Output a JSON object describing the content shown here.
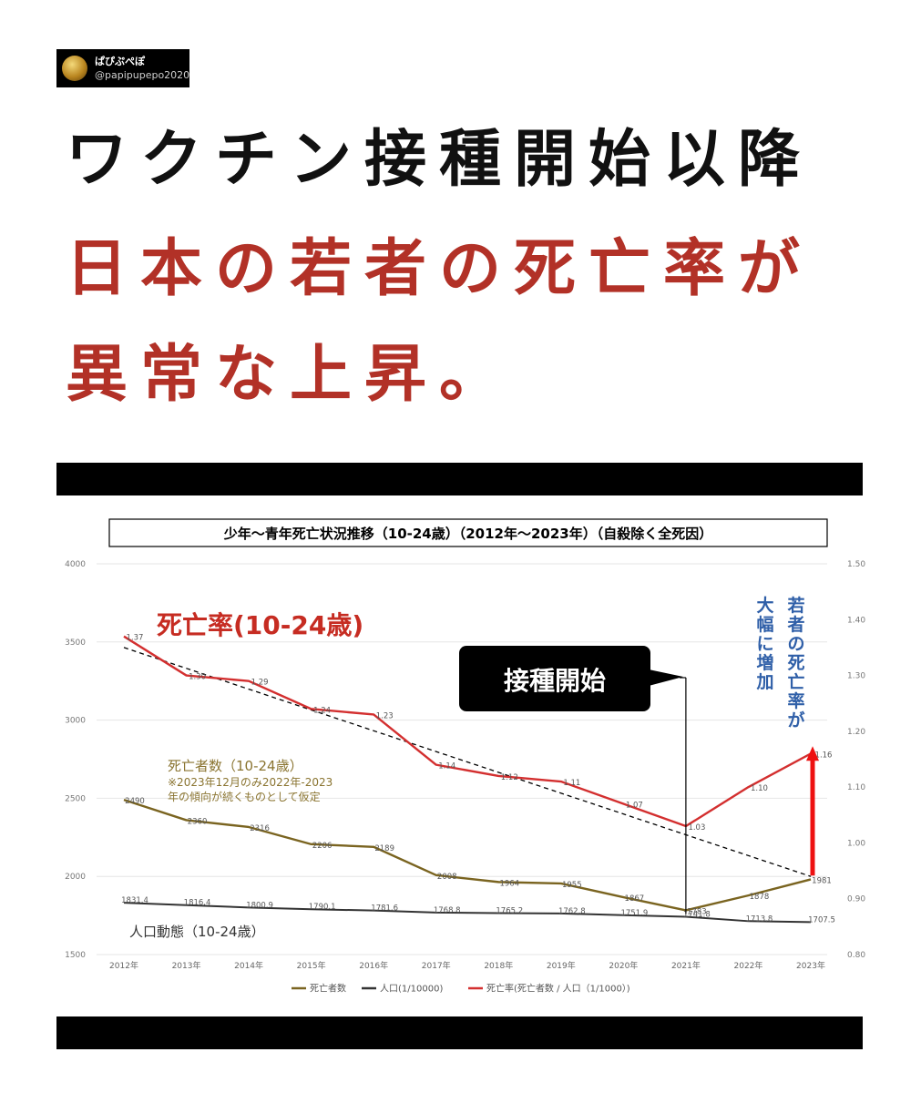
{
  "account": {
    "name": "ぱぴぷぺぽ",
    "handle": "@papipupepo2020"
  },
  "headline": {
    "line1": "ワクチン接種開始以降",
    "line2": "日本の若者の死亡率が",
    "line3": "異常な上昇。"
  },
  "colors": {
    "headline_red": "#b23127",
    "deaths": "#7a6420",
    "population": "#333333",
    "rate": "#d32f2f",
    "callout_blue": "#2f5fa8"
  },
  "chart_data": {
    "type": "line",
    "title": "少年～青年死亡状況推移（10-24歳）（2012年～2023年）（自殺除く全死因）",
    "categories": [
      "2012年",
      "2013年",
      "2014年",
      "2015年",
      "2016年",
      "2017年",
      "2018年",
      "2019年",
      "2020年",
      "2021年",
      "2022年",
      "2023年"
    ],
    "y_left": {
      "min": 1500,
      "max": 4000,
      "ticks": [
        1500,
        2000,
        2500,
        3000,
        3500,
        4000
      ]
    },
    "y_right": {
      "min": 0.8,
      "max": 1.5,
      "ticks": [
        "0.80",
        "0.90",
        "1.00",
        "1.10",
        "1.20",
        "1.30",
        "1.40",
        "1.50"
      ]
    },
    "grid": true,
    "legend_position": "bottom",
    "series": [
      {
        "name": "死亡者数",
        "axis": "left",
        "values": [
          2490,
          2360,
          2316,
          2206,
          2189,
          2008,
          1964,
          1955,
          1867,
          1783,
          1878,
          1981
        ],
        "labels": [
          "2490",
          "2360",
          "2316",
          "2206",
          "2189",
          "2008",
          "1964",
          "1955",
          "1867",
          "1783",
          "1878",
          "1981"
        ]
      },
      {
        "name": "人口(1/10000)",
        "axis": "left",
        "values": [
          1831.4,
          1816.4,
          1800.9,
          1790.1,
          1781.6,
          1768.8,
          1765.2,
          1762.8,
          1751.9,
          1741.8,
          1713.8,
          1707.5
        ],
        "labels": [
          "1831.4",
          "1816.4",
          "1800.9",
          "1790.1",
          "1781.6",
          "1768.8",
          "1765.2",
          "1762.8",
          "1751.9",
          "1741.8",
          "1713.8",
          "1707.5"
        ]
      },
      {
        "name": "死亡率(死亡者数 / 人口（1/1000）)",
        "axis": "right",
        "values": [
          1.37,
          1.3,
          1.29,
          1.24,
          1.23,
          1.14,
          1.12,
          1.11,
          1.07,
          1.03,
          1.1,
          1.16
        ],
        "labels": [
          "1.37",
          "1.30",
          "1.29",
          "1.24",
          "1.23",
          "1.14",
          "1.12",
          "1.11",
          "1.07",
          "1.03",
          "1.10",
          "1.16"
        ]
      }
    ],
    "trendline": {
      "axis": "right",
      "from": 1.35,
      "to": 0.94
    },
    "arrow": {
      "category": "2023年",
      "from": 0.94,
      "to": 1.17
    },
    "annotations": {
      "rate_label": "死亡率(10-24歳)",
      "deaths_label": "死亡者数（10-24歳）",
      "deaths_note_1": "※2023年12月のみ2022年-2023",
      "deaths_note_2": "年の傾向が続くものとして仮定",
      "population_label": "人口動態（10-24歳）",
      "vaccination_start": "接種開始",
      "right_callout_1": "若者の死亡率が",
      "right_callout_2": "大幅に増加"
    }
  }
}
